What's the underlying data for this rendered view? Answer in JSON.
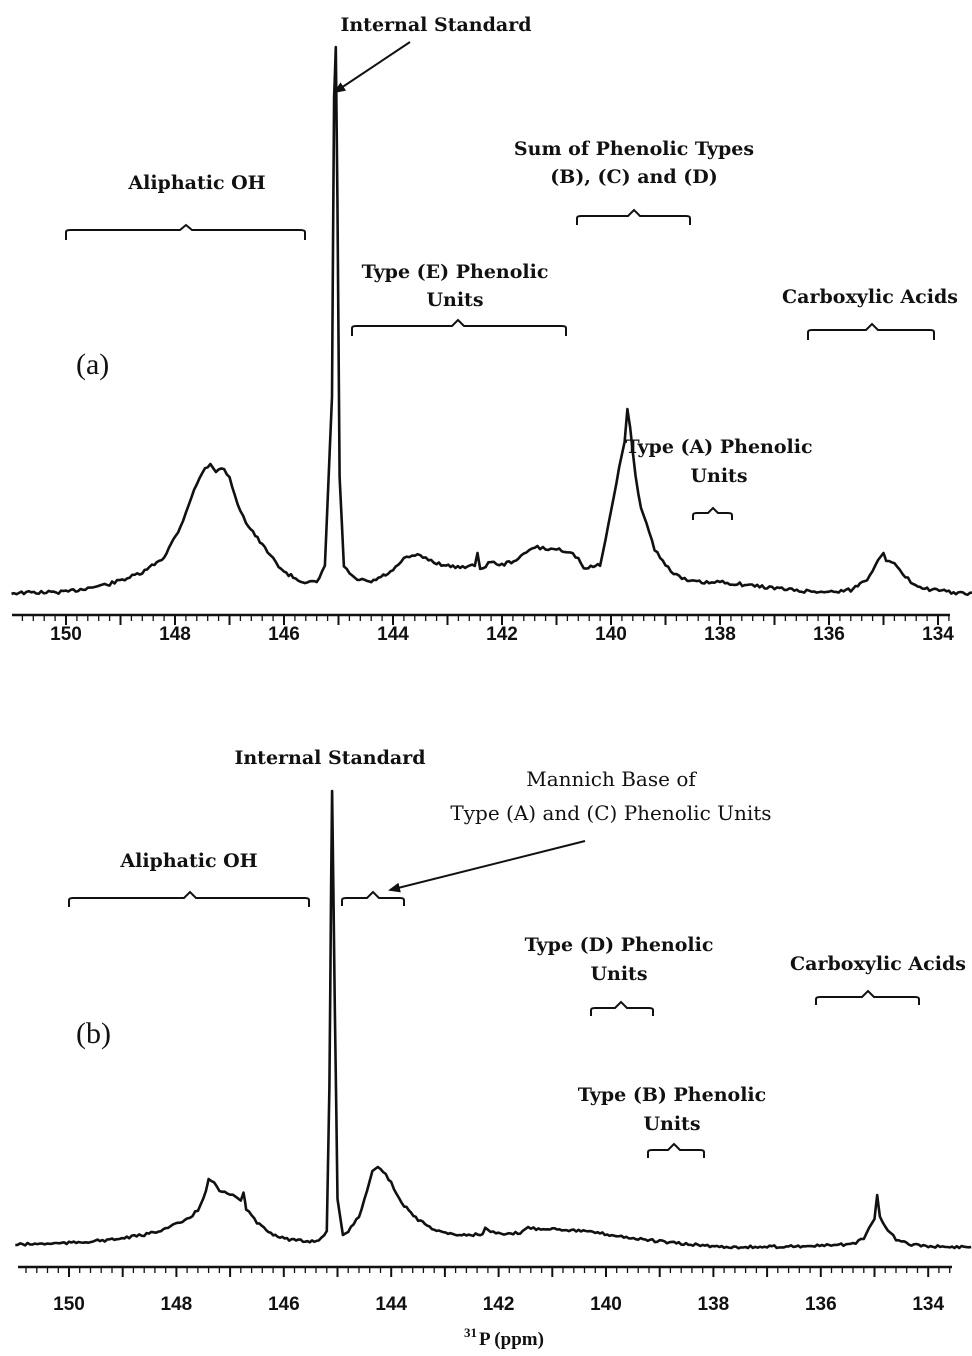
{
  "chart_data": [
    {
      "type": "line",
      "panel_label": "(a)",
      "xlim": [
        151.1,
        133.2
      ],
      "x_ticks": [
        150,
        148,
        146,
        144,
        142,
        140,
        138,
        136,
        134
      ],
      "series": [
        {
          "x": [
            151.0,
            150.0,
            149.2,
            148.6,
            148.2,
            147.9,
            147.7,
            147.5,
            147.35,
            147.25,
            147.15,
            147.0,
            146.9,
            146.7,
            146.4,
            146.2,
            146.0,
            145.7,
            145.4,
            145.25,
            145.12,
            145.08,
            145.05,
            145.02,
            144.98,
            144.9,
            144.7,
            144.4,
            144.0,
            143.8,
            143.6,
            143.4,
            143.2,
            142.9,
            142.5,
            142.45,
            142.4,
            142.2,
            142.0,
            141.7,
            141.5,
            141.4,
            141.2,
            141.0,
            140.8,
            140.6,
            140.5,
            140.2,
            140.0,
            139.85,
            139.75,
            139.7,
            139.65,
            139.55,
            139.45,
            139.3,
            139.2,
            139.0,
            138.8,
            138.6,
            138.2,
            138.0,
            137.5,
            137.0,
            136.5,
            136.0,
            135.6,
            135.3,
            135.1,
            135.0,
            134.95,
            134.85,
            134.7,
            134.5,
            134.2,
            133.8,
            133.5,
            133.2
          ],
          "y": [
            0.4,
            0.5,
            1.3,
            2.4,
            4.0,
            7.0,
            10.0,
            12.5,
            13.3,
            12.5,
            13.0,
            12.0,
            10.0,
            7.5,
            5.2,
            3.8,
            2.5,
            1.6,
            1.4,
            3.0,
            20.0,
            50.0,
            55.0,
            40.0,
            12.0,
            3.0,
            1.8,
            1.5,
            2.6,
            3.8,
            4.2,
            3.9,
            3.4,
            3.0,
            3.1,
            4.4,
            2.8,
            3.5,
            3.2,
            3.8,
            4.7,
            5.0,
            4.8,
            4.8,
            4.6,
            3.9,
            2.8,
            3.2,
            8.5,
            13.0,
            15.5,
            18.8,
            17.0,
            12.0,
            9.0,
            6.5,
            4.8,
            3.2,
            2.2,
            1.6,
            1.4,
            1.5,
            1.2,
            0.9,
            0.6,
            0.5,
            0.7,
            1.8,
            3.7,
            4.4,
            3.6,
            3.6,
            2.6,
            1.5,
            0.8,
            0.5,
            0.3,
            0.3
          ]
        }
      ],
      "annotations": {
        "internal_standard": "Internal Standard",
        "aliphatic_oh": "Aliphatic OH",
        "sum_line1": "Sum of Phenolic Types",
        "sum_line2": "(B), (C) and (D)",
        "type_e_line1": "Type (E) Phenolic",
        "type_e_line2": "Units",
        "carboxylic": "Carboxylic Acids",
        "type_a_line1": "Type (A) Phenolic",
        "type_a_line2": "Units"
      }
    },
    {
      "type": "line",
      "panel_label": "(b)",
      "xlim": [
        151.1,
        133.2
      ],
      "x_ticks": [
        150,
        148,
        146,
        144,
        142,
        140,
        138,
        136,
        134
      ],
      "x_label_sup": "31",
      "x_label": "P (ppm)",
      "series": [
        {
          "x": [
            151.0,
            150.0,
            149.2,
            148.6,
            148.2,
            147.8,
            147.6,
            147.45,
            147.4,
            147.3,
            147.2,
            147.1,
            146.9,
            146.8,
            146.75,
            146.7,
            146.5,
            146.2,
            145.9,
            145.6,
            145.35,
            145.2,
            145.15,
            145.12,
            145.1,
            145.05,
            145.0,
            144.9,
            144.8,
            144.6,
            144.45,
            144.35,
            144.25,
            144.15,
            144.0,
            143.8,
            143.5,
            143.2,
            142.9,
            142.6,
            142.3,
            142.25,
            142.1,
            141.9,
            141.6,
            141.45,
            141.3,
            141.0,
            140.6,
            140.2,
            139.8,
            139.4,
            139.0,
            138.6,
            138.2,
            137.8,
            137.4,
            137.0,
            136.6,
            136.2,
            135.8,
            135.4,
            135.2,
            135.1,
            135.0,
            134.95,
            134.9,
            134.8,
            134.6,
            134.4,
            134.0,
            133.6,
            133.2
          ],
          "y": [
            0.3,
            0.5,
            0.9,
            1.5,
            2.3,
            3.4,
            4.6,
            7.0,
            8.5,
            8.0,
            7.0,
            6.8,
            6.3,
            5.8,
            6.8,
            4.8,
            3.0,
            1.6,
            0.9,
            0.7,
            0.8,
            2.0,
            20.0,
            45.0,
            57.0,
            30.0,
            6.0,
            1.5,
            1.9,
            3.8,
            7.0,
            9.5,
            10.0,
            9.5,
            8.0,
            5.5,
            3.4,
            2.2,
            1.6,
            1.5,
            1.6,
            2.3,
            1.8,
            1.5,
            1.8,
            2.4,
            2.3,
            2.3,
            2.1,
            1.8,
            1.4,
            1.0,
            0.7,
            0.4,
            0.2,
            0.0,
            0.0,
            0.0,
            0.1,
            0.1,
            0.2,
            0.4,
            1.0,
            2.4,
            3.5,
            6.5,
            3.8,
            2.4,
            1.0,
            0.4,
            0.1,
            0.0,
            0.0
          ]
        }
      ],
      "annotations": {
        "internal_standard": "Internal Standard",
        "mannich_line1": "Mannich Base of",
        "mannich_line2": "Type (A) and (C) Phenolic Units",
        "aliphatic_oh": "Aliphatic OH",
        "type_d_line1": "Type (D) Phenolic",
        "type_d_line2": "Units",
        "carboxylic": "Carboxylic Acids",
        "type_b_line1": "Type (B) Phenolic",
        "type_b_line2": "Units"
      }
    }
  ]
}
